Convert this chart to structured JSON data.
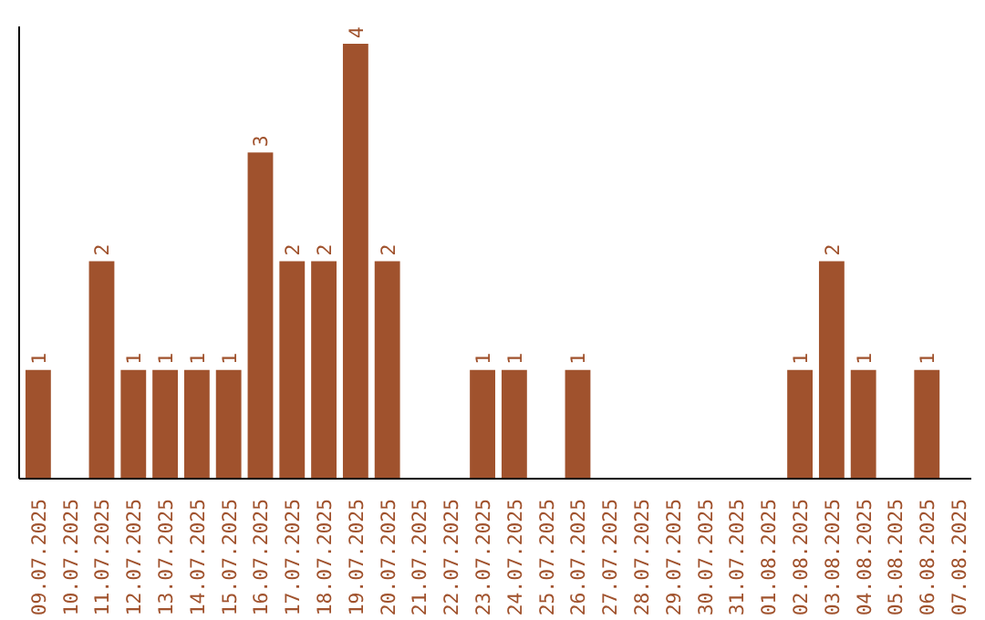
{
  "chart_data": {
    "type": "bar",
    "categories": [
      "09.07.2025",
      "10.07.2025",
      "11.07.2025",
      "12.07.2025",
      "13.07.2025",
      "14.07.2025",
      "15.07.2025",
      "16.07.2025",
      "17.07.2025",
      "18.07.2025",
      "19.07.2025",
      "20.07.2025",
      "21.07.2025",
      "22.07.2025",
      "23.07.2025",
      "24.07.2025",
      "25.07.2025",
      "26.07.2025",
      "27.07.2025",
      "28.07.2025",
      "29.07.2025",
      "30.07.2025",
      "31.07.2025",
      "01.08.2025",
      "02.08.2025",
      "03.08.2025",
      "04.08.2025",
      "05.08.2025",
      "06.08.2025",
      "07.08.2025"
    ],
    "values": [
      1,
      0,
      2,
      1,
      1,
      1,
      1,
      3,
      2,
      2,
      4,
      2,
      0,
      0,
      1,
      1,
      0,
      1,
      0,
      0,
      0,
      0,
      0,
      0,
      1,
      2,
      1,
      0,
      1,
      0
    ],
    "value_labels": [
      "1",
      null,
      "2",
      "1",
      "1",
      "1",
      "1",
      "3",
      "2",
      "2",
      "4",
      "2",
      null,
      null,
      "1",
      "1",
      null,
      "1",
      null,
      null,
      null,
      null,
      null,
      null,
      "1",
      "2",
      "1",
      null,
      "1",
      null
    ],
    "color": "#a0522d",
    "grid": false
  }
}
